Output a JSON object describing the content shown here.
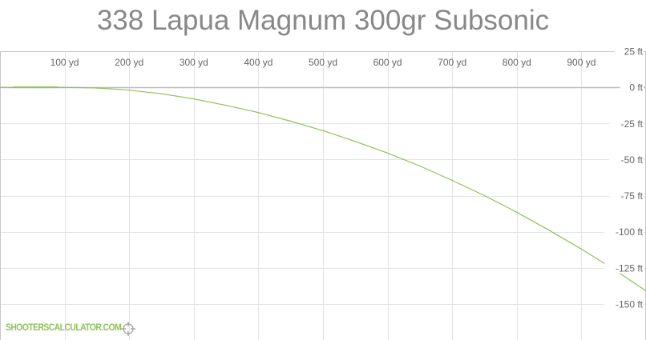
{
  "chart_data": {
    "type": "line",
    "title": "338 Lapua Magnum 300gr Subsonic",
    "x_unit": "yd",
    "y_unit": "ft",
    "x_ticks": [
      100,
      200,
      300,
      400,
      500,
      600,
      700,
      800,
      900
    ],
    "x_tick_labels": [
      "100 yd",
      "200 yd",
      "300 yd",
      "400 yd",
      "500 yd",
      "600 yd",
      "700 yd",
      "800 yd",
      "900 yd"
    ],
    "y_ticks": [
      25,
      0,
      -25,
      -50,
      -75,
      -100,
      -125,
      -150
    ],
    "y_tick_labels": [
      "25 ft",
      "0 ft",
      "-25 ft",
      "-50 ft",
      "-75 ft",
      "-100 ft",
      "-125 ft",
      "-150 ft"
    ],
    "xlim": [
      0,
      1000
    ],
    "ylim": [
      -175,
      25
    ],
    "grid": true,
    "series": [
      {
        "color": "#8fc15a",
        "x": [
          0,
          50,
          100,
          150,
          200,
          250,
          300,
          350,
          400,
          450,
          500,
          550,
          600,
          650,
          700,
          750,
          800,
          850,
          900,
          950,
          1000
        ],
        "y": [
          0,
          0,
          0,
          -0.5,
          -2,
          -4.5,
          -8,
          -12.5,
          -17.5,
          -23.5,
          -30,
          -37.5,
          -45.5,
          -54.5,
          -64.5,
          -75,
          -86.5,
          -99,
          -112,
          -126,
          -141
        ]
      }
    ]
  },
  "branding": {
    "site": "SHOOTERSCALCULATOR.COM",
    "logo_icon": "crosshair-icon",
    "accent": "#8fc15a"
  }
}
